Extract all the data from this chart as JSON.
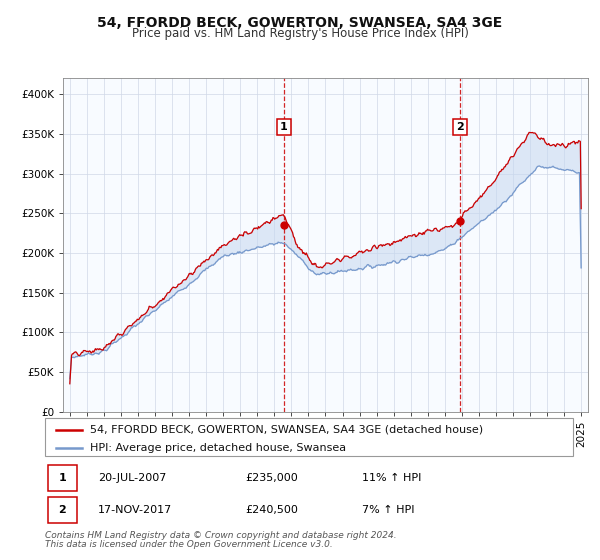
{
  "title": "54, FFORDD BECK, GOWERTON, SWANSEA, SA4 3GE",
  "subtitle": "Price paid vs. HM Land Registry's House Price Index (HPI)",
  "legend_line1": "54, FFORDD BECK, GOWERTON, SWANSEA, SA4 3GE (detached house)",
  "legend_line2": "HPI: Average price, detached house, Swansea",
  "annotation1_date": "20-JUL-2007",
  "annotation1_price": "£235,000",
  "annotation1_hpi": "11% ↑ HPI",
  "annotation2_date": "17-NOV-2017",
  "annotation2_price": "£240,500",
  "annotation2_hpi": "7% ↑ HPI",
  "footnote1": "Contains HM Land Registry data © Crown copyright and database right 2024.",
  "footnote2": "This data is licensed under the Open Government Licence v3.0.",
  "sale1_year": 2007.55,
  "sale1_value": 235000,
  "sale2_year": 2017.88,
  "sale2_value": 240500,
  "red_color": "#cc0000",
  "blue_color": "#7799cc",
  "fill_color": "#c5d8f0",
  "plot_bg": "#f8fbff",
  "ylim_min": 0,
  "ylim_max": 420000,
  "xlim_min": 1994.6,
  "xlim_max": 2025.4,
  "ytick_step": 50000,
  "title_fontsize": 10,
  "subtitle_fontsize": 8.5,
  "tick_fontsize": 7.5,
  "legend_fontsize": 8,
  "ann_fontsize": 8,
  "footnote_fontsize": 6.5
}
